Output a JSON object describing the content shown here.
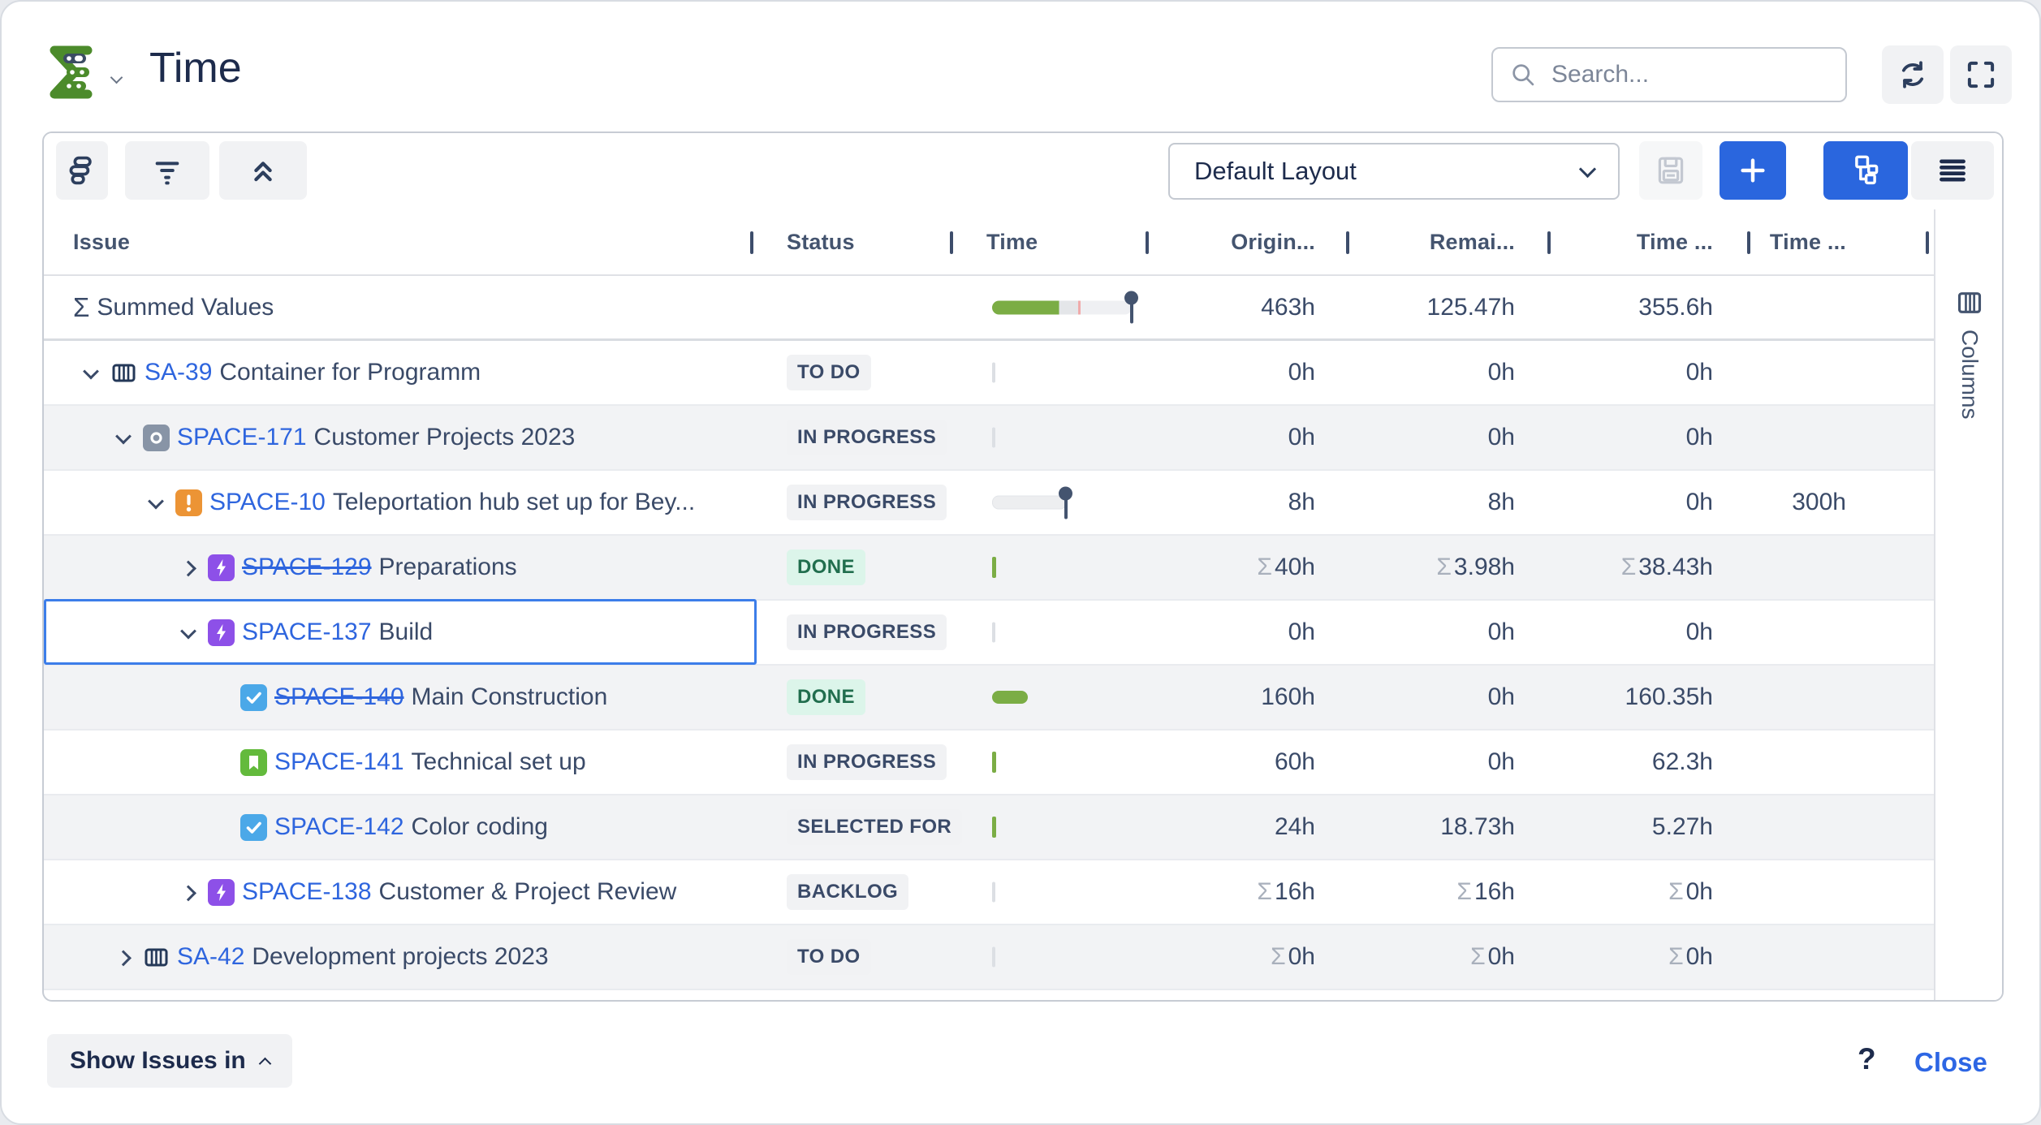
{
  "window": {
    "title": "Time"
  },
  "header": {
    "search_placeholder": "Search..."
  },
  "toolbar": {
    "layout_value": "Default Layout"
  },
  "table": {
    "sum_sigma": "Σ",
    "columns": [
      {
        "id": "issue",
        "label": "Issue"
      },
      {
        "id": "status",
        "label": "Status"
      },
      {
        "id": "time",
        "label": "Time"
      },
      {
        "id": "original",
        "label": "Origin..."
      },
      {
        "id": "remaining",
        "label": "Remai..."
      },
      {
        "id": "spent",
        "label": "Time ..."
      },
      {
        "id": "extra",
        "label": "Time ..."
      }
    ],
    "summary_row": {
      "sigma": "Σ",
      "label": "Summed Values",
      "original": "463h",
      "remaining": "125.47h",
      "spent": "355.6h",
      "extra": ""
    },
    "rows": [
      {
        "key": "SA-39",
        "summary": "Container for Programm",
        "indent": 0,
        "chevron": "down",
        "icon": "container",
        "done": false,
        "selected": false,
        "status": "TO DO",
        "status_color": "gray",
        "time_bar": "tick-gray",
        "sum_prefix": false,
        "original": "0h",
        "remaining": "0h",
        "spent": "0h",
        "extra": ""
      },
      {
        "key": "SPACE-171",
        "summary": "Customer Projects 2023",
        "indent": 1,
        "chevron": "down",
        "icon": "program",
        "done": false,
        "selected": false,
        "status": "IN PROGRESS",
        "status_color": "gray",
        "time_bar": "tick-faint",
        "sum_prefix": false,
        "original": "0h",
        "remaining": "0h",
        "spent": "0h",
        "extra": ""
      },
      {
        "key": "SPACE-10",
        "summary": "Teleportation hub set up for Bey...",
        "indent": 2,
        "chevron": "down",
        "icon": "incident",
        "done": false,
        "selected": false,
        "status": "IN PROGRESS",
        "status_color": "gray",
        "time_bar": "track-pin",
        "sum_prefix": false,
        "original": "8h",
        "remaining": "8h",
        "spent": "0h",
        "extra": "300h"
      },
      {
        "key": "SPACE-129",
        "summary": "Preparations",
        "indent": 3,
        "chevron": "right",
        "icon": "bolt",
        "done": true,
        "selected": false,
        "status": "DONE",
        "status_color": "green",
        "time_bar": "tick-green",
        "sum_prefix": true,
        "original": "40h",
        "remaining": "3.98h",
        "spent": "38.43h",
        "extra": ""
      },
      {
        "key": "SPACE-137",
        "summary": "Build",
        "indent": 3,
        "chevron": "down",
        "icon": "bolt",
        "done": false,
        "selected": true,
        "status": "IN PROGRESS",
        "status_color": "gray",
        "time_bar": "tick-faint",
        "sum_prefix": false,
        "original": "0h",
        "remaining": "0h",
        "spent": "0h",
        "extra": ""
      },
      {
        "key": "SPACE-140",
        "summary": "Main Construction",
        "indent": 4,
        "chevron": "none",
        "icon": "task",
        "done": true,
        "selected": false,
        "status": "DONE",
        "status_color": "green",
        "time_bar": "pill-green",
        "sum_prefix": false,
        "original": "160h",
        "remaining": "0h",
        "spent": "160.35h",
        "extra": ""
      },
      {
        "key": "SPACE-141",
        "summary": "Technical set up",
        "indent": 4,
        "chevron": "none",
        "icon": "story",
        "done": false,
        "selected": false,
        "status": "IN PROGRESS",
        "status_color": "gray",
        "time_bar": "tick-green",
        "sum_prefix": false,
        "original": "60h",
        "remaining": "0h",
        "spent": "62.3h",
        "extra": ""
      },
      {
        "key": "SPACE-142",
        "summary": "Color coding",
        "indent": 4,
        "chevron": "none",
        "icon": "task",
        "done": false,
        "selected": false,
        "status": "SELECTED FOR",
        "status_color": "gray",
        "time_bar": "tick-green",
        "sum_prefix": false,
        "original": "24h",
        "remaining": "18.73h",
        "spent": "5.27h",
        "extra": ""
      },
      {
        "key": "SPACE-138",
        "summary": "Customer & Project Review",
        "indent": 3,
        "chevron": "right",
        "icon": "bolt",
        "done": false,
        "selected": false,
        "status": "BACKLOG",
        "status_color": "gray",
        "time_bar": "tick-faint",
        "sum_prefix": true,
        "original": "16h",
        "remaining": "16h",
        "spent": "0h",
        "extra": ""
      },
      {
        "key": "SA-42",
        "summary": "Development projects 2023",
        "indent": 1,
        "chevron": "right",
        "icon": "container",
        "done": false,
        "selected": false,
        "status": "TO DO",
        "status_color": "gray",
        "time_bar": "tick-faint",
        "sum_prefix": true,
        "original": "0h",
        "remaining": "0h",
        "spent": "0h",
        "extra": ""
      }
    ]
  },
  "columns_panel": {
    "label": "Columns"
  },
  "footer": {
    "show_issues": "Show Issues in",
    "help": "?",
    "close": "Close"
  },
  "colors": {
    "accent_blue": "#2A66DE",
    "link_blue": "#2E65DE",
    "bar_green": "#7BAD45",
    "logo_green": "#4C8B2B",
    "done_bg": "#DCF5EA",
    "done_text": "#216E4E"
  }
}
